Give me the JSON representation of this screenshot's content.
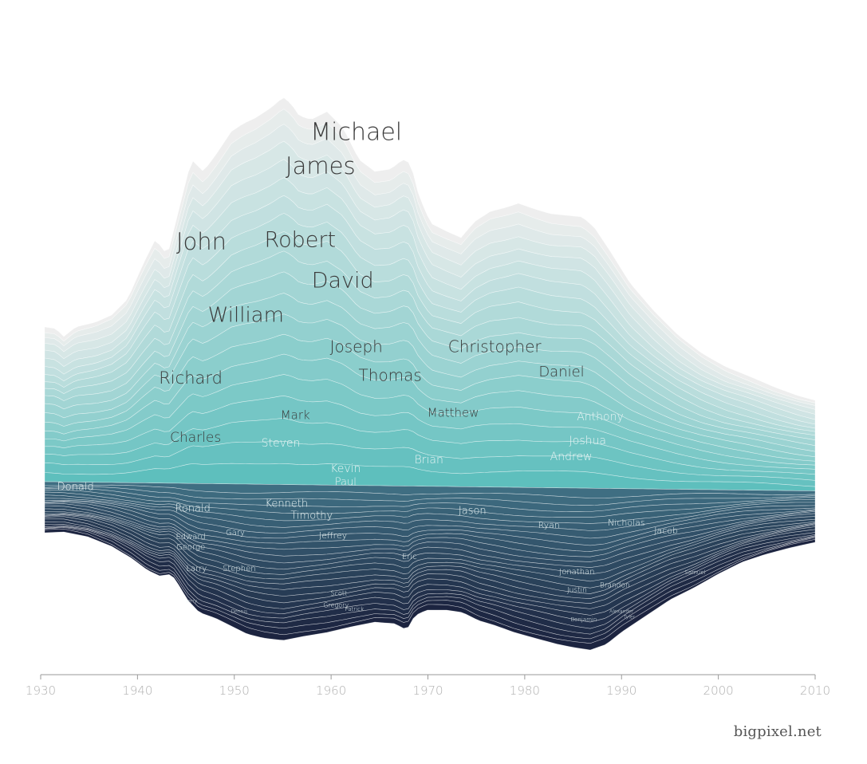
{
  "credit": "bigpixel.net",
  "chart_data": {
    "type": "area",
    "variant": "streamgraph",
    "x_range": [
      1930,
      2010
    ],
    "x_ticks": [
      "1930",
      "1940",
      "1950",
      "1960",
      "1970",
      "1980",
      "1990",
      "2000",
      "2010"
    ],
    "grid": false,
    "legend": "inline labels",
    "colors": {
      "top": "#eeeeee",
      "mid": "#5ebfbd",
      "dark": "#1c2440"
    },
    "series": [
      {
        "name": "Michael",
        "peak": 1965,
        "value": 1.0
      },
      {
        "name": "James",
        "peak": 1950,
        "value": 0.9
      },
      {
        "name": "John",
        "peak": 1945,
        "value": 0.85
      },
      {
        "name": "Robert",
        "peak": 1950,
        "value": 0.85
      },
      {
        "name": "David",
        "peak": 1960,
        "value": 0.8
      },
      {
        "name": "William",
        "peak": 1950,
        "value": 0.75
      },
      {
        "name": "Joseph",
        "peak": 1960,
        "value": 0.5
      },
      {
        "name": "Christopher",
        "peak": 1978,
        "value": 0.6
      },
      {
        "name": "Richard",
        "peak": 1945,
        "value": 0.5
      },
      {
        "name": "Thomas",
        "peak": 1962,
        "value": 0.45
      },
      {
        "name": "Daniel",
        "peak": 1985,
        "value": 0.45
      },
      {
        "name": "Mark",
        "peak": 1957,
        "value": 0.4
      },
      {
        "name": "Matthew",
        "peak": 1983,
        "value": 0.4
      },
      {
        "name": "Anthony",
        "peak": 1987,
        "value": 0.35
      },
      {
        "name": "Charles",
        "peak": 1945,
        "value": 0.35
      },
      {
        "name": "Steven",
        "peak": 1955,
        "value": 0.35
      },
      {
        "name": "Joshua",
        "peak": 1988,
        "value": 0.35
      },
      {
        "name": "Brian",
        "peak": 1972,
        "value": 0.3
      },
      {
        "name": "Andrew",
        "peak": 1988,
        "value": 0.3
      },
      {
        "name": "Kevin",
        "peak": 1962,
        "value": 0.3
      },
      {
        "name": "Paul",
        "peak": 1962,
        "value": 0.25
      },
      {
        "name": "Donald",
        "peak": 1932,
        "value": 0.25
      },
      {
        "name": "Ronald",
        "peak": 1945,
        "value": 0.25
      },
      {
        "name": "Kenneth",
        "peak": 1955,
        "value": 0.25
      },
      {
        "name": "Timothy",
        "peak": 1960,
        "value": 0.25
      },
      {
        "name": "Jason",
        "peak": 1975,
        "value": 0.35
      },
      {
        "name": "Ryan",
        "peak": 1985,
        "value": 0.2
      },
      {
        "name": "Nicholas",
        "peak": 1992,
        "value": 0.2
      },
      {
        "name": "Jacob",
        "peak": 1995,
        "value": 0.2
      },
      {
        "name": "Edward",
        "peak": 1945,
        "value": 0.15
      },
      {
        "name": "George",
        "peak": 1945,
        "value": 0.15
      },
      {
        "name": "Gary",
        "peak": 1950,
        "value": 0.2
      },
      {
        "name": "Jeffrey",
        "peak": 1960,
        "value": 0.2
      },
      {
        "name": "Eric",
        "peak": 1968,
        "value": 0.15
      },
      {
        "name": "Larry",
        "peak": 1945,
        "value": 0.15
      },
      {
        "name": "Stephen",
        "peak": 1950,
        "value": 0.15
      },
      {
        "name": "Jonathan",
        "peak": 1985,
        "value": 0.15
      },
      {
        "name": "Justin",
        "peak": 1985,
        "value": 0.12
      },
      {
        "name": "Brandon",
        "peak": 1989,
        "value": 0.12
      },
      {
        "name": "Samuel",
        "peak": 1998,
        "value": 0.08
      },
      {
        "name": "Scott",
        "peak": 1962,
        "value": 0.12
      },
      {
        "name": "Gregory",
        "peak": 1962,
        "value": 0.1
      },
      {
        "name": "Patrick",
        "peak": 1965,
        "value": 0.08
      },
      {
        "name": "Jerry",
        "peak": 1945,
        "value": 0.08
      },
      {
        "name": "Dennis",
        "peak": 1950,
        "value": 0.08
      },
      {
        "name": "Benjamin",
        "peak": 1986,
        "value": 0.08
      },
      {
        "name": "Alexander",
        "peak": 1990,
        "value": 0.06
      },
      {
        "name": "Tyler",
        "peak": 1991,
        "value": 0.06
      }
    ],
    "labels": [
      {
        "text": "Michael",
        "year": 1962.6,
        "size": 30,
        "color": "#3a3a3a"
      },
      {
        "text": "James",
        "year": 1958.9,
        "size": 29,
        "color": "#3a3a3a"
      },
      {
        "text": "John",
        "year": 1946.6,
        "size": 29,
        "color": "#3a3a3a"
      },
      {
        "text": "Robert",
        "year": 1956.8,
        "size": 27,
        "color": "#3a3a3a"
      },
      {
        "text": "David",
        "year": 1961.2,
        "size": 27,
        "color": "#3a3a3a"
      },
      {
        "text": "William",
        "year": 1951.2,
        "size": 26,
        "color": "#3a3a3a"
      },
      {
        "text": "Joseph",
        "year": 1962.6,
        "size": 20,
        "color": "#3a3a3a"
      },
      {
        "text": "Christopher",
        "year": 1976.9,
        "size": 20,
        "color": "#3a3a3a"
      },
      {
        "text": "Richard",
        "year": 1945.5,
        "size": 21,
        "color": "#3a3a3a"
      },
      {
        "text": "Thomas",
        "year": 1966.1,
        "size": 20,
        "color": "#3a3a3a"
      },
      {
        "text": "Daniel",
        "year": 1983.8,
        "size": 18,
        "color": "#3a3a3a"
      },
      {
        "text": "Mark",
        "year": 1956.3,
        "size": 15,
        "color": "#3a3a3a"
      },
      {
        "text": "Matthew",
        "year": 1972.6,
        "size": 15,
        "color": "#3a3a3a"
      },
      {
        "text": "Anthony",
        "year": 1987.8,
        "size": 14,
        "color": "#e8f4f4"
      },
      {
        "text": "Charles",
        "year": 1946.0,
        "size": 17,
        "color": "#3a3a3a"
      },
      {
        "text": "Steven",
        "year": 1954.8,
        "size": 14,
        "color": "#e8f4f4"
      },
      {
        "text": "Joshua",
        "year": 1986.5,
        "size": 14,
        "color": "#e8f4f4"
      },
      {
        "text": "Brian",
        "year": 1970.1,
        "size": 14,
        "color": "#e8f4f4"
      },
      {
        "text": "Andrew",
        "year": 1984.8,
        "size": 14,
        "color": "#e8f4f4"
      },
      {
        "text": "Kevin",
        "year": 1961.5,
        "size": 14,
        "color": "#e8f4f4"
      },
      {
        "text": "Paul",
        "year": 1961.5,
        "size": 13,
        "color": "#e8f4f4"
      },
      {
        "text": "Donald",
        "year": 1933.6,
        "size": 13,
        "color": "#e8f4f4"
      },
      {
        "text": "Ronald",
        "year": 1945.7,
        "size": 13,
        "color": "#e8f4f4"
      },
      {
        "text": "Kenneth",
        "year": 1955.4,
        "size": 13,
        "color": "#e8f4f4"
      },
      {
        "text": "Timothy",
        "year": 1958.0,
        "size": 13,
        "color": "#e8f4f4"
      },
      {
        "text": "Jason",
        "year": 1974.6,
        "size": 13,
        "color": "#e8f4f4"
      },
      {
        "text": "Ryan",
        "year": 1982.5,
        "size": 11,
        "color": "#e8f4f4"
      },
      {
        "text": "Nicholas",
        "year": 1990.5,
        "size": 11,
        "color": "#e8f4f4"
      },
      {
        "text": "Jacob",
        "year": 1994.6,
        "size": 11,
        "color": "#e8f4f4"
      },
      {
        "text": "Edward",
        "year": 1945.5,
        "size": 10,
        "color": "#e8f4f4"
      },
      {
        "text": "George",
        "year": 1945.5,
        "size": 10,
        "color": "#e8f4f4"
      },
      {
        "text": "Gary",
        "year": 1950.1,
        "size": 10,
        "color": "#e8f4f4"
      },
      {
        "text": "Jeffrey",
        "year": 1960.2,
        "size": 11,
        "color": "#e8f4f4"
      },
      {
        "text": "Eric",
        "year": 1968.1,
        "size": 10,
        "color": "#e8f4f4"
      },
      {
        "text": "Larry",
        "year": 1946.1,
        "size": 10,
        "color": "#e8f4f4"
      },
      {
        "text": "Stephen",
        "year": 1950.5,
        "size": 10,
        "color": "#e8f4f4"
      },
      {
        "text": "Jonathan",
        "year": 1985.4,
        "size": 10,
        "color": "#e8f4f4"
      },
      {
        "text": "Justin",
        "year": 1985.4,
        "size": 9,
        "color": "#e8f4f4"
      },
      {
        "text": "Brandon",
        "year": 1989.3,
        "size": 9,
        "color": "#e8f4f4"
      },
      {
        "text": "Samuel",
        "year": 1997.6,
        "size": 7,
        "color": "#e8f4f4"
      },
      {
        "text": "Scott",
        "year": 1960.8,
        "size": 8,
        "color": "#e8f4f4"
      },
      {
        "text": "Gregory",
        "year": 1960.5,
        "size": 8,
        "color": "#e8f4f4"
      },
      {
        "text": "Patrick",
        "year": 1962.4,
        "size": 7,
        "color": "#e8f4f4"
      },
      {
        "text": "Jerry",
        "year": 1945.6,
        "size": 6,
        "color": "#e8f4f4"
      },
      {
        "text": "Dennis",
        "year": 1950.5,
        "size": 6,
        "color": "#e8f4f4"
      },
      {
        "text": "Benjamin",
        "year": 1986.1,
        "size": 7,
        "color": "#e8f4f4"
      },
      {
        "text": "Alexander",
        "year": 1990.0,
        "size": 6,
        "color": "#e8f4f4"
      },
      {
        "text": "Tyler",
        "year": 1990.8,
        "size": 6,
        "color": "#e8f4f4"
      }
    ]
  }
}
